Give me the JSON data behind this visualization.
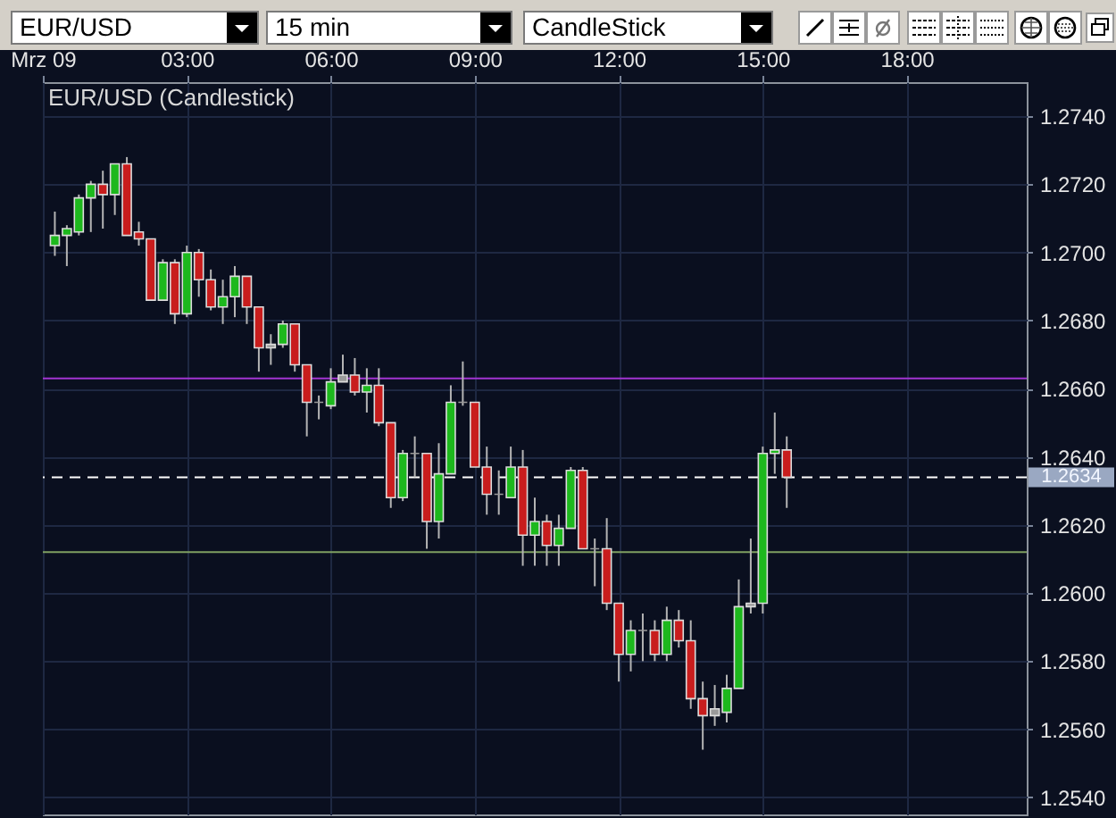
{
  "chart_data": {
    "type": "candlestick",
    "title": "EUR/USD (Candlestick)",
    "annotations": [
      "EUR/USD",
      "15 min",
      "CandleStick"
    ],
    "x": [
      0.25,
      0.5,
      0.75,
      1,
      1.25,
      1.5,
      1.75,
      2,
      2.25,
      2.5,
      2.75,
      3,
      3.25,
      3.5,
      3.75,
      4,
      4.25,
      4.5,
      4.75,
      5,
      5.25,
      5.5,
      5.75,
      6,
      6.25,
      6.5,
      6.75,
      7,
      7.25,
      7.5,
      7.75,
      8,
      8.25,
      8.5,
      8.75,
      9,
      9.25,
      9.5,
      9.75,
      10,
      10.25,
      10.5,
      10.75,
      11,
      11.25,
      11.5,
      11.75,
      12,
      12.25,
      12.5,
      12.75,
      13,
      13.25,
      13.5,
      13.75,
      14,
      14.25,
      14.5,
      14.75,
      15,
      15.25,
      15.5
    ],
    "ohlc": [
      [
        1.2702,
        1.2712,
        1.2699,
        1.2705
      ],
      [
        1.2705,
        1.2708,
        1.2696,
        1.2707
      ],
      [
        1.2706,
        1.2717,
        1.2705,
        1.2716
      ],
      [
        1.2716,
        1.2721,
        1.2706,
        1.272
      ],
      [
        1.272,
        1.2724,
        1.2707,
        1.2717
      ],
      [
        1.2717,
        1.2726,
        1.2711,
        1.2726
      ],
      [
        1.2726,
        1.2728,
        1.2705,
        1.2705
      ],
      [
        1.2706,
        1.2709,
        1.2702,
        1.2704
      ],
      [
        1.2704,
        1.2704,
        1.2686,
        1.2686
      ],
      [
        1.2686,
        1.2698,
        1.2686,
        1.2697
      ],
      [
        1.2697,
        1.2698,
        1.2679,
        1.2682
      ],
      [
        1.2682,
        1.2702,
        1.2681,
        1.27
      ],
      [
        1.27,
        1.2701,
        1.2687,
        1.2692
      ],
      [
        1.2692,
        1.2695,
        1.2683,
        1.2684
      ],
      [
        1.2684,
        1.2692,
        1.2679,
        1.2687
      ],
      [
        1.2687,
        1.2696,
        1.2681,
        1.2693
      ],
      [
        1.2693,
        1.2693,
        1.2679,
        1.2684
      ],
      [
        1.2684,
        1.2684,
        1.2665,
        1.2672
      ],
      [
        1.2672,
        1.2676,
        1.2667,
        1.2673
      ],
      [
        1.2673,
        1.268,
        1.2672,
        1.2679
      ],
      [
        1.2679,
        1.2679,
        1.2665,
        1.2667
      ],
      [
        1.2667,
        1.2667,
        1.2646,
        1.2656
      ],
      [
        1.2656,
        1.2658,
        1.2651,
        1.2656
      ],
      [
        1.2655,
        1.2666,
        1.2654,
        1.2662
      ],
      [
        1.2662,
        1.267,
        1.2662,
        1.2664
      ],
      [
        1.2664,
        1.2669,
        1.2658,
        1.2659
      ],
      [
        1.2659,
        1.2666,
        1.2653,
        1.2661
      ],
      [
        1.2661,
        1.2666,
        1.2649,
        1.265
      ],
      [
        1.265,
        1.265,
        1.2625,
        1.2628
      ],
      [
        1.2628,
        1.2642,
        1.2627,
        1.2641
      ],
      [
        1.2641,
        1.2646,
        1.2634,
        1.2641
      ],
      [
        1.2641,
        1.2641,
        1.2613,
        1.2621
      ],
      [
        1.2621,
        1.2644,
        1.2616,
        1.2635
      ],
      [
        1.2635,
        1.2661,
        1.2635,
        1.2656
      ],
      [
        1.2656,
        1.2668,
        1.2655,
        1.2656
      ],
      [
        1.2656,
        1.2656,
        1.2637,
        1.2637
      ],
      [
        1.2637,
        1.2643,
        1.2623,
        1.2629
      ],
      [
        1.2629,
        1.2636,
        1.2623,
        1.2629
      ],
      [
        1.2628,
        1.2643,
        1.2628,
        1.2637
      ],
      [
        1.2637,
        1.2642,
        1.2608,
        1.2617
      ],
      [
        1.2617,
        1.2628,
        1.2608,
        1.2621
      ],
      [
        1.2621,
        1.2623,
        1.2608,
        1.2614
      ],
      [
        1.2614,
        1.2623,
        1.2608,
        1.2619
      ],
      [
        1.2619,
        1.2637,
        1.2619,
        1.2636
      ],
      [
        1.2636,
        1.2637,
        1.2613,
        1.2613
      ],
      [
        1.2613,
        1.2616,
        1.2602,
        1.2613
      ],
      [
        1.2613,
        1.2622,
        1.2595,
        1.2597
      ],
      [
        1.2597,
        1.2597,
        1.2574,
        1.2582
      ],
      [
        1.2582,
        1.2592,
        1.2577,
        1.2589
      ],
      [
        1.2589,
        1.2594,
        1.258,
        1.2589
      ],
      [
        1.2589,
        1.2592,
        1.258,
        1.2582
      ],
      [
        1.2582,
        1.2596,
        1.258,
        1.2592
      ],
      [
        1.2592,
        1.2595,
        1.2584,
        1.2586
      ],
      [
        1.2586,
        1.2592,
        1.2566,
        1.2569
      ],
      [
        1.2569,
        1.2574,
        1.2554,
        1.2564
      ],
      [
        1.2564,
        1.2573,
        1.2561,
        1.2566
      ],
      [
        1.2565,
        1.2576,
        1.2562,
        1.2572
      ],
      [
        1.2572,
        1.2604,
        1.2572,
        1.2596
      ],
      [
        1.2596,
        1.2616,
        1.2594,
        1.2597
      ],
      [
        1.2597,
        1.2643,
        1.2594,
        1.2641
      ],
      [
        1.2641,
        1.2653,
        1.2635,
        1.2642
      ],
      [
        1.2642,
        1.2646,
        1.2625,
        1.2634
      ]
    ],
    "colors": [
      "#1db81d",
      "#1db81d",
      "#1db81d",
      "#1db81d",
      "#c81d1d",
      "#1db81d",
      "#c81d1d",
      "#c81d1d",
      "#c81d1d",
      "#1db81d",
      "#c81d1d",
      "#1db81d",
      "#c81d1d",
      "#c81d1d",
      "#1db81d",
      "#1db81d",
      "#c81d1d",
      "#c81d1d",
      "#9a9a9a",
      "#1db81d",
      "#c81d1d",
      "#c81d1d",
      "#9a9a9a",
      "#1db81d",
      "#9a9a9a",
      "#c81d1d",
      "#1db81d",
      "#c81d1d",
      "#c81d1d",
      "#1db81d",
      "#9a9a9a",
      "#c81d1d",
      "#1db81d",
      "#1db81d",
      "#9a9a9a",
      "#c81d1d",
      "#c81d1d",
      "#9a9a9a",
      "#1db81d",
      "#c81d1d",
      "#1db81d",
      "#c81d1d",
      "#1db81d",
      "#1db81d",
      "#c81d1d",
      "#9a9a9a",
      "#c81d1d",
      "#c81d1d",
      "#1db81d",
      "#9a9a9a",
      "#c81d1d",
      "#1db81d",
      "#c81d1d",
      "#c81d1d",
      "#c81d1d",
      "#9a9a9a",
      "#1db81d",
      "#1db81d",
      "#9a9a9a",
      "#1db81d",
      "#1db81d",
      "#c81d1d"
    ],
    "xlim": [
      0,
      20.5
    ],
    "xticks": [
      {
        "value": 0,
        "label": "Mrz 09"
      },
      {
        "value": 3,
        "label": "03:00"
      },
      {
        "value": 6,
        "label": "06:00"
      },
      {
        "value": 9,
        "label": "09:00"
      },
      {
        "value": 12,
        "label": "12:00"
      },
      {
        "value": 15,
        "label": "15:00"
      },
      {
        "value": 18,
        "label": "18:00"
      }
    ],
    "ylim": [
      1.2535,
      1.275
    ],
    "yticks": [
      {
        "value": 1.254,
        "label": "1.2540"
      },
      {
        "value": 1.256,
        "label": "1.2560"
      },
      {
        "value": 1.258,
        "label": "1.2580"
      },
      {
        "value": 1.26,
        "label": "1.2600"
      },
      {
        "value": 1.262,
        "label": "1.2620"
      },
      {
        "value": 1.264,
        "label": "1.2640"
      },
      {
        "value": 1.266,
        "label": "1.2660"
      },
      {
        "value": 1.268,
        "label": "1.2680"
      },
      {
        "value": 1.27,
        "label": "1.2700"
      },
      {
        "value": 1.272,
        "label": "1.2720"
      },
      {
        "value": 1.274,
        "label": "1.2740"
      }
    ],
    "ref_lines": [
      {
        "axis": "y",
        "value": 1.2663,
        "color": "#a234d2"
      },
      {
        "axis": "y",
        "value": 1.2612,
        "color": "#7f9f62"
      },
      {
        "axis": "y",
        "value": 1.2634,
        "label": "1.2634",
        "color": "#ffffff",
        "line_style": "dashed"
      }
    ],
    "grid": true
  }
}
